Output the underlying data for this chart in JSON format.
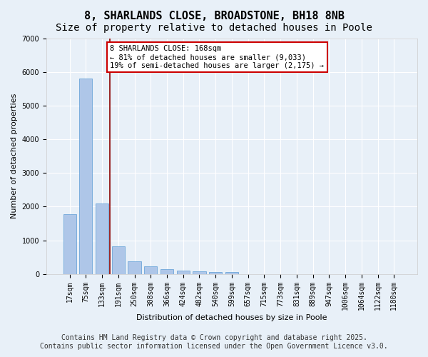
{
  "title": "8, SHARLANDS CLOSE, BROADSTONE, BH18 8NB",
  "subtitle": "Size of property relative to detached houses in Poole",
  "xlabel": "Distribution of detached houses by size in Poole",
  "ylabel": "Number of detached properties",
  "categories": [
    "17sqm",
    "75sqm",
    "133sqm",
    "191sqm",
    "250sqm",
    "308sqm",
    "366sqm",
    "424sqm",
    "482sqm",
    "540sqm",
    "599sqm",
    "657sqm",
    "715sqm",
    "773sqm",
    "831sqm",
    "889sqm",
    "947sqm",
    "1006sqm",
    "1064sqm",
    "1122sqm",
    "1180sqm"
  ],
  "values": [
    1780,
    5820,
    2090,
    820,
    370,
    215,
    130,
    100,
    85,
    65,
    50,
    0,
    0,
    0,
    0,
    0,
    0,
    0,
    0,
    0,
    0
  ],
  "bar_color": "#aec6e8",
  "bar_edge_color": "#5b9bd5",
  "vline_x": 3,
  "vline_color": "#8b0000",
  "annotation_text": "8 SHARLANDS CLOSE: 168sqm\n← 81% of detached houses are smaller (9,033)\n19% of semi-detached houses are larger (2,175) →",
  "annotation_box_color": "#ffffff",
  "annotation_box_edge_color": "#cc0000",
  "background_color": "#e8f0f8",
  "plot_bg_color": "#e8f0f8",
  "ylim": [
    0,
    7000
  ],
  "yticks": [
    0,
    1000,
    2000,
    3000,
    4000,
    5000,
    6000,
    7000
  ],
  "footer_line1": "Contains HM Land Registry data © Crown copyright and database right 2025.",
  "footer_line2": "Contains public sector information licensed under the Open Government Licence v3.0.",
  "title_fontsize": 11,
  "subtitle_fontsize": 10,
  "label_fontsize": 8,
  "tick_fontsize": 7,
  "annotation_fontsize": 7.5,
  "footer_fontsize": 7
}
